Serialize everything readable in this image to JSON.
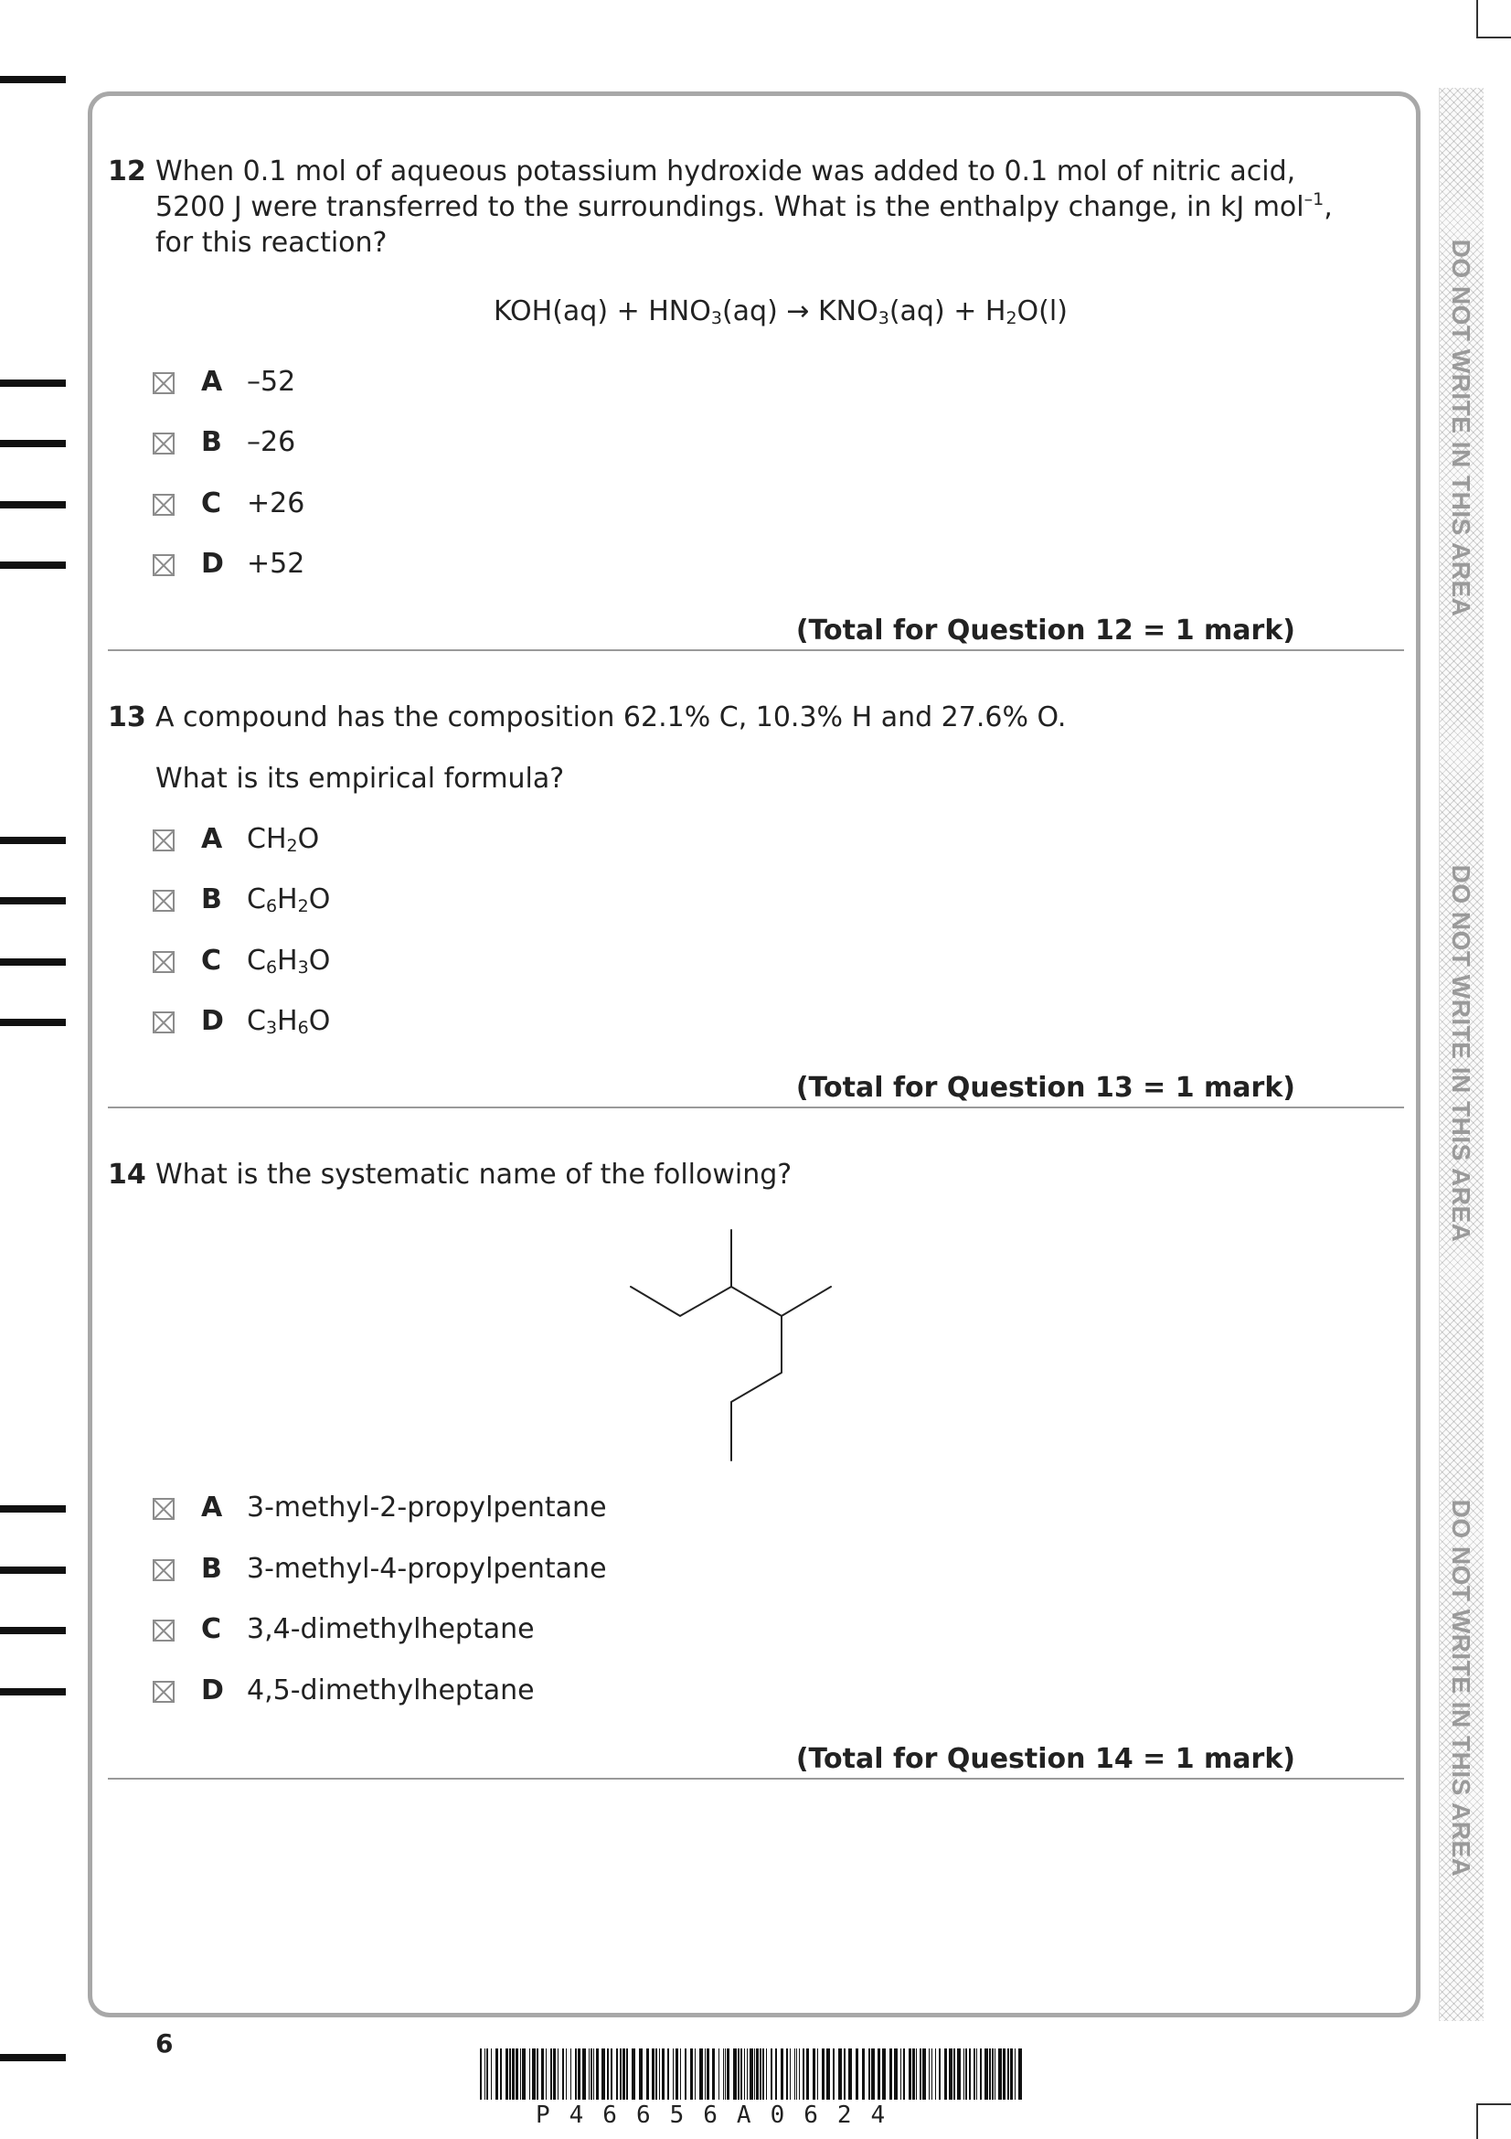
{
  "side_banner": [
    "DO NOT WRITE IN THIS AREA",
    "DO NOT WRITE IN THIS AREA",
    "DO NOT WRITE IN THIS AREA"
  ],
  "questions": [
    {
      "number": "12",
      "text_lines": [
        "When 0.1 mol of aqueous potassium hydroxide was added to 0.1 mol of nitric acid,",
        "5200 J were transferred to the surroundings.  What is the enthalpy change, in kJ mol",
        "for this reaction?"
      ],
      "text_line2_sup": "–1",
      "text_line2_tail": ",",
      "equation": {
        "t1": "KOH(aq) + HNO",
        "s1": "3",
        "t2": "(aq) → KNO",
        "s2": "3",
        "t3": "(aq) + H",
        "s3": "2",
        "t4": "O(l)"
      },
      "options": [
        {
          "letter": "A",
          "text": "–52"
        },
        {
          "letter": "B",
          "text": "–26"
        },
        {
          "letter": "C",
          "text": "+26"
        },
        {
          "letter": "D",
          "text": "+52"
        }
      ],
      "total": "(Total for Question 12 = 1 mark)"
    },
    {
      "number": "13",
      "text": "A compound has the composition 62.1% C, 10.3% H and 27.6% O.",
      "subtext": "What is its empirical formula?",
      "options": [
        {
          "letter": "A",
          "p1": "CH",
          "s1": "2",
          "p2": "O",
          "s2": "",
          "p3": ""
        },
        {
          "letter": "B",
          "p1": "C",
          "s1": "6",
          "p2": "H",
          "s2": "2",
          "p3": "O"
        },
        {
          "letter": "C",
          "p1": "C",
          "s1": "6",
          "p2": "H",
          "s2": "3",
          "p3": "O"
        },
        {
          "letter": "D",
          "p1": "C",
          "s1": "3",
          "p2": "H",
          "s2": "6",
          "p3": "O"
        }
      ],
      "total": "(Total for Question 13 = 1 mark)"
    },
    {
      "number": "14",
      "text": "What is the systematic name of the following?",
      "options": [
        {
          "letter": "A",
          "text": "3-methyl-2-propylpentane"
        },
        {
          "letter": "B",
          "text": "3-methyl-4-propylpentane"
        },
        {
          "letter": "C",
          "text": "3,4-dimethylheptane"
        },
        {
          "letter": "D",
          "text": "4,5-dimethylheptane"
        }
      ],
      "total": "(Total for Question 14 = 1 mark)"
    }
  ],
  "page_number": "6",
  "barcode_text": "P46656A0624",
  "colors": {
    "frame": "#a8a8a8",
    "rule": "#9a9a9a",
    "banner": "#9a9a9a"
  }
}
